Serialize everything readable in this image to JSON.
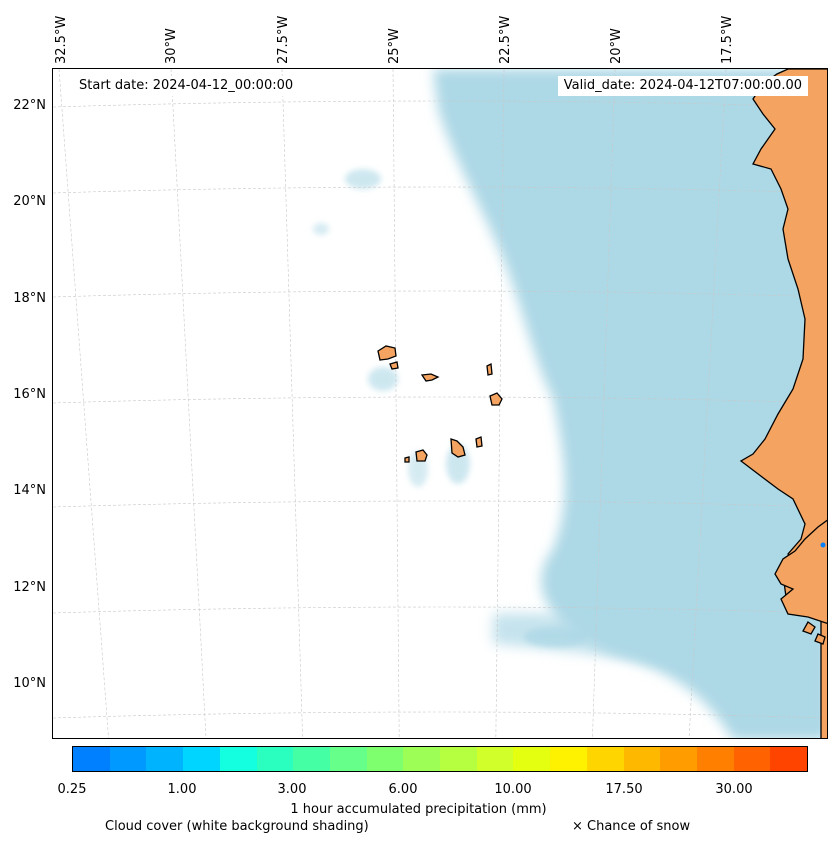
{
  "map": {
    "start_date": "Start date: 2024-04-12_00:00:00",
    "valid_date": "Valid_date: 2024-04-12T07:00:00.00",
    "lon_labels": [
      "32.5°W",
      "30°W",
      "27.5°W",
      "25°W",
      "22.5°W",
      "20°W",
      "17.5°W"
    ],
    "lat_labels": [
      "22°N",
      "20°N",
      "18°N",
      "16°N",
      "14°N",
      "12°N",
      "10°N"
    ],
    "colors": {
      "land": "#f4a460",
      "cloud": "#add8e6",
      "coast": "#000000",
      "grid": "#c8c8c8"
    }
  },
  "colorbar": {
    "title": "1 hour accumulated precipitation (mm)",
    "tick_labels": [
      "0.25",
      "1.00",
      "3.00",
      "6.00",
      "10.00",
      "17.50",
      "30.00"
    ],
    "colors": [
      "#0080ff",
      "#0099ff",
      "#00b3ff",
      "#00d5ff",
      "#14ffe0",
      "#2affc0",
      "#45ffa5",
      "#65ff8a",
      "#7dff6e",
      "#9dff55",
      "#b5ff40",
      "#d0ff2a",
      "#e5ff10",
      "#fff200",
      "#ffd500",
      "#ffb800",
      "#ff9c00",
      "#ff7f00",
      "#ff6200",
      "#ff4400"
    ]
  },
  "legend": {
    "cloud_cover": "Cloud cover (white background shading)",
    "snow": "× Chance of snow"
  }
}
